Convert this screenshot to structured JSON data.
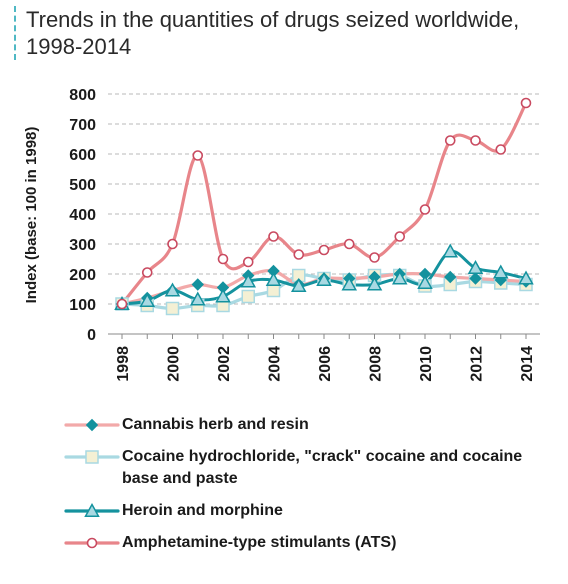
{
  "title": "Trends in the quantities of drugs seized worldwide, 1998-2014",
  "chart_data": {
    "type": "line",
    "title": "Trends in the quantities of drugs seized worldwide, 1998-2014",
    "ylabel": "Index (base: 100 in 1998)",
    "xlabel": "",
    "ylim": [
      0,
      800
    ],
    "yticks": [
      "0",
      "100",
      "200",
      "300",
      "400",
      "500",
      "600",
      "700",
      "800"
    ],
    "xtick_labels": [
      "1998",
      "2000",
      "2002",
      "2004",
      "2006",
      "2008",
      "2010",
      "2012",
      "2014"
    ],
    "x": [
      1998,
      1999,
      2000,
      2001,
      2002,
      2003,
      2004,
      2005,
      2006,
      2007,
      2008,
      2009,
      2010,
      2011,
      2012,
      2013,
      2014
    ],
    "grid": "horizontal dashed",
    "legend_position": "bottom",
    "series": [
      {
        "name": "Cannabis herb and resin",
        "color": "#f2a9a9",
        "marker": "diamond",
        "marker_color": "#14929e",
        "values": [
          100,
          120,
          145,
          165,
          155,
          195,
          210,
          165,
          185,
          185,
          190,
          200,
          200,
          190,
          185,
          180,
          175
        ]
      },
      {
        "name": "Cocaine hydrochloride, \"crack\" cocaine and cocaine base and paste",
        "color": "#a9d9e2",
        "marker": "square",
        "marker_color": "#f4f0d4",
        "values": [
          100,
          95,
          85,
          95,
          95,
          125,
          145,
          195,
          185,
          180,
          195,
          195,
          160,
          165,
          175,
          170,
          165
        ]
      },
      {
        "name": "Heroin and morphine",
        "color": "#14929e",
        "marker": "triangle",
        "marker_color": "#a9d9e2",
        "values": [
          100,
          110,
          145,
          115,
          125,
          175,
          180,
          160,
          180,
          165,
          165,
          185,
          170,
          275,
          220,
          205,
          185
        ]
      },
      {
        "name": "Amphetamine-type stimulants (ATS)",
        "color": "#e8858a",
        "marker": "circle",
        "marker_color": "#ffffff",
        "marker_edge": "#c94a60",
        "values": [
          100,
          205,
          300,
          595,
          250,
          240,
          325,
          265,
          280,
          300,
          255,
          325,
          415,
          645,
          645,
          615,
          770
        ]
      }
    ]
  }
}
